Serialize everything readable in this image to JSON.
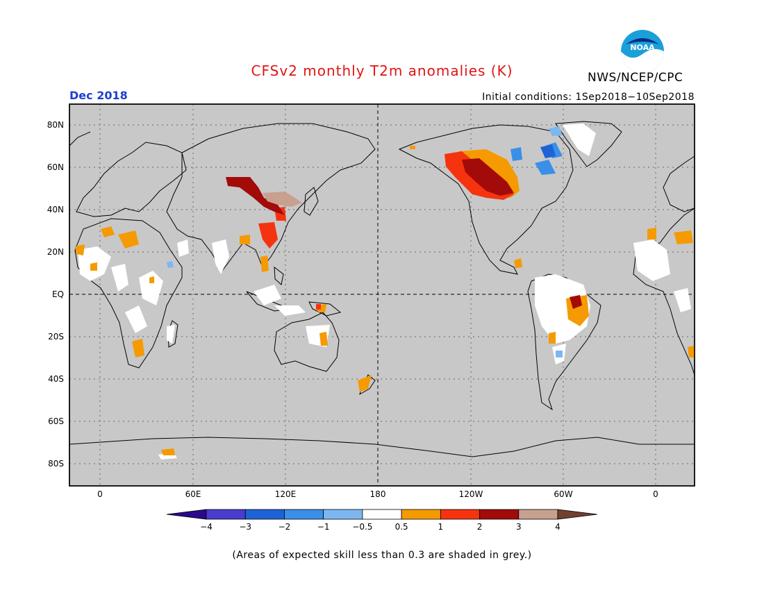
{
  "title": "CFSv2 monthly T2m anomalies (K)",
  "month": "Dec 2018",
  "initial_conditions": "Initial conditions: 1Sep2018−10Sep2018",
  "agency": "NWS/NCEP/CPC",
  "logo_text": "NOAA",
  "footnote": "(Areas of expected skill less than 0.3 are shaded in grey.)",
  "colors": {
    "title": "#e01414",
    "month": "#1f3fd0",
    "map_background": "#c8c8c8",
    "land_outline": "#000000",
    "grid": "#555555"
  },
  "lat_labels": [
    "80N",
    "60N",
    "40N",
    "20N",
    "EQ",
    "20S",
    "40S",
    "60S",
    "80S"
  ],
  "lon_labels": [
    "0",
    "60E",
    "120E",
    "180",
    "120W",
    "60W",
    "0"
  ],
  "colorbar": {
    "ticks": [
      "−4",
      "−3",
      "−2",
      "−1",
      "−0.5",
      "0.5",
      "1",
      "2",
      "3",
      "4"
    ],
    "colors": [
      "#2a0a8a",
      "#4a3ccf",
      "#1e63d6",
      "#3a8fe8",
      "#7db7f0",
      "#ffffff",
      "#f59a00",
      "#f5330f",
      "#a30a0a",
      "#c8a090",
      "#704030"
    ]
  }
}
